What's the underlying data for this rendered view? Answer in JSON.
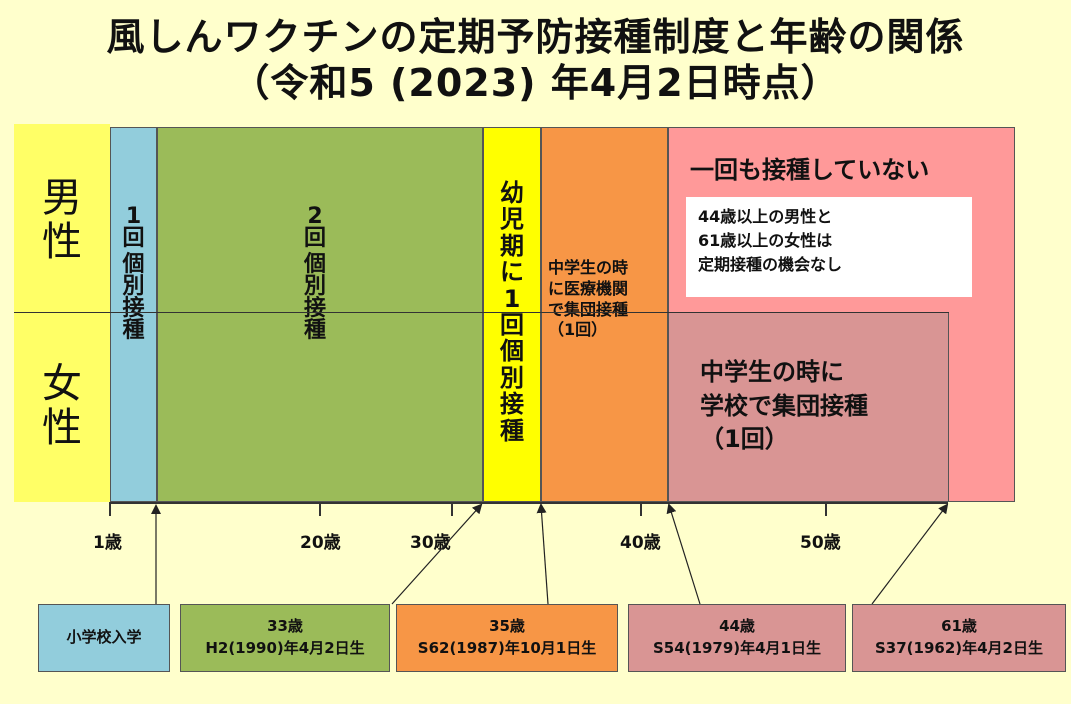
{
  "title": {
    "line1": "風しんワクチンの定期予防接種制度と年齢の関係",
    "line2": "（令和5 (2023) 年4月2日時点）"
  },
  "sex": {
    "male": [
      "男",
      "性"
    ],
    "female": [
      "女",
      "性"
    ]
  },
  "bands": {
    "one_dose": [
      "1",
      "回",
      "個",
      "別",
      "接",
      "種"
    ],
    "two_doses": [
      "2",
      "回",
      "個",
      "別",
      "接",
      "種"
    ],
    "infant": [
      "幼",
      "児",
      "期",
      "に",
      "1",
      "回",
      "個",
      "別",
      "接",
      "種"
    ],
    "junior_high_clinic": [
      "中学生の時",
      "に医療機関",
      "で集団接種",
      "（1回）"
    ],
    "never": "一回も接種していない",
    "note": [
      "44歳以上の男性と",
      "61歳以上の女性は",
      "定期接種の機会なし"
    ],
    "junior_high_school": [
      "中学生の時に",
      "学校で集団接種",
      "（1回）"
    ]
  },
  "axis_labels": [
    "1歳",
    "20歳",
    "30歳",
    "40歳",
    "50歳"
  ],
  "boundaries": [
    {
      "lines": [
        "小学校入学"
      ]
    },
    {
      "lines": [
        "33歳",
        "H2(1990)年4月2日生"
      ]
    },
    {
      "lines": [
        "35歳",
        "S62(1987)年10月1日生"
      ]
    },
    {
      "lines": [
        "44歳",
        "S54(1979)年4月1日生"
      ]
    },
    {
      "lines": [
        "61歳",
        "S37(1962)年4月2日生"
      ]
    }
  ],
  "colors": {
    "background": "#ffffcc",
    "sex_panel": "#ffff66",
    "one_dose": "#92cddc",
    "two_doses": "#9bbb59",
    "infant": "#ffff00",
    "clinic": "#f79646",
    "never": "#ff9999",
    "school": "#d99594"
  }
}
